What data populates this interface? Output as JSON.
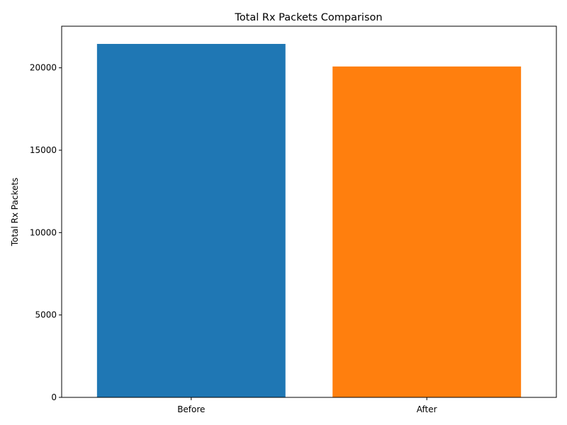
{
  "chart_data": {
    "type": "bar",
    "title": "Total Rx Packets Comparison",
    "xlabel": "",
    "ylabel": "Total Rx Packets",
    "categories": [
      "Before",
      "After"
    ],
    "values": [
      21450,
      20080
    ],
    "colors": [
      "#1f77b4",
      "#ff7f0e"
    ],
    "ylim": [
      0,
      22524
    ],
    "yticks": [
      0,
      5000,
      10000,
      15000,
      20000
    ],
    "grid": false,
    "legend": "none"
  }
}
